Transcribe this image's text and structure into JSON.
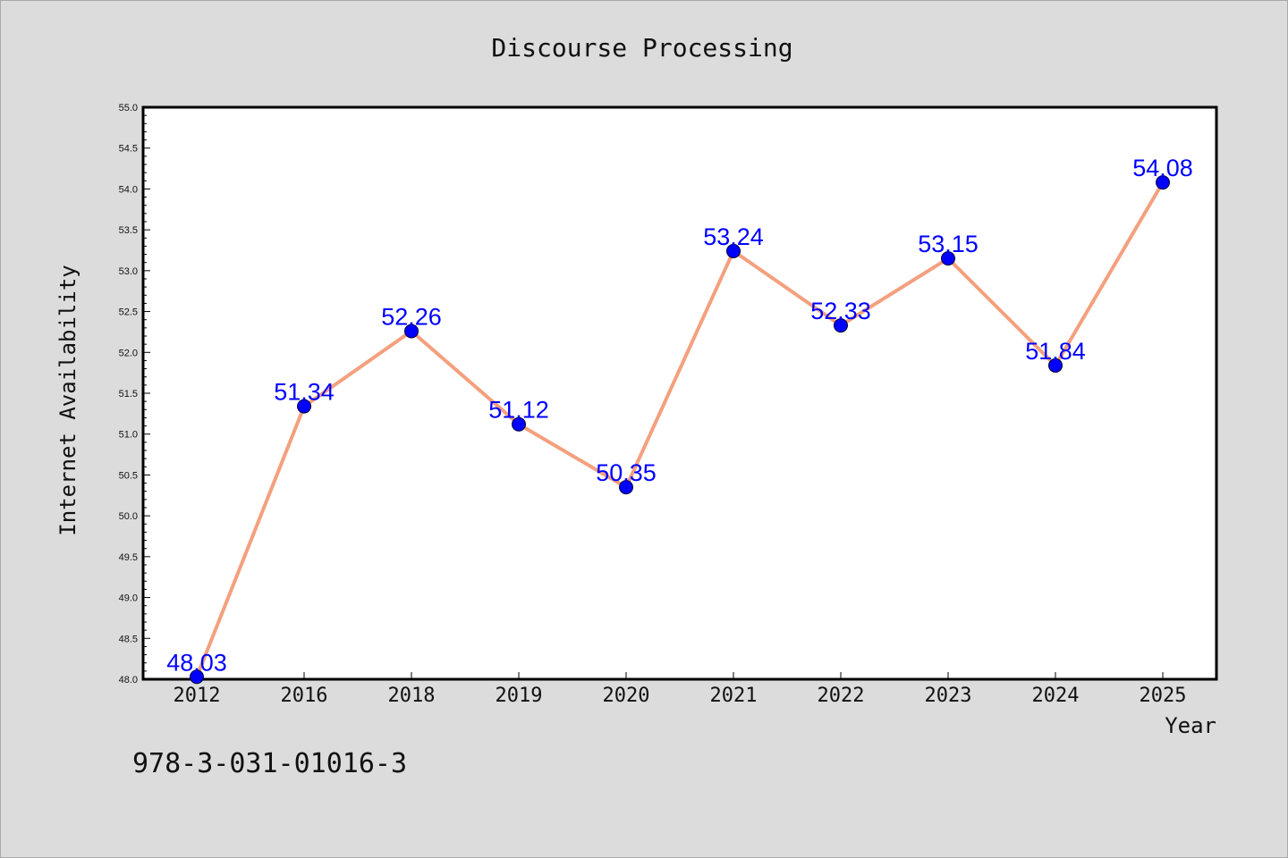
{
  "chart_data": {
    "type": "line",
    "title": "Discourse Processing",
    "xlabel": "Year",
    "ylabel": "Internet Availability",
    "categories": [
      "2012",
      "2016",
      "2018",
      "2019",
      "2020",
      "2021",
      "2022",
      "2023",
      "2024",
      "2025"
    ],
    "values": [
      48.03,
      51.34,
      52.26,
      51.12,
      50.35,
      53.24,
      52.33,
      53.15,
      51.84,
      54.08
    ],
    "data_labels": [
      "48.03",
      "51.34",
      "52.26",
      "51.12",
      "50.35",
      "53.24",
      "52.33",
      "53.15",
      "51.84",
      "54.08"
    ],
    "ylim": [
      48.0,
      55.0
    ],
    "yticks": [
      "48.0",
      "48.5",
      "49.0",
      "49.5",
      "50.0",
      "50.5",
      "51.0",
      "51.5",
      "52.0",
      "52.5",
      "53.0",
      "53.5",
      "54.0",
      "54.5",
      "55.0"
    ],
    "grid": false,
    "line_color": "#f4a07e",
    "marker_color": "#0000ff",
    "label_color": "#0000ff",
    "background": "#dcdcdc",
    "plot_background": "#ffffff"
  },
  "footer_text": "978-3-031-01016-3"
}
